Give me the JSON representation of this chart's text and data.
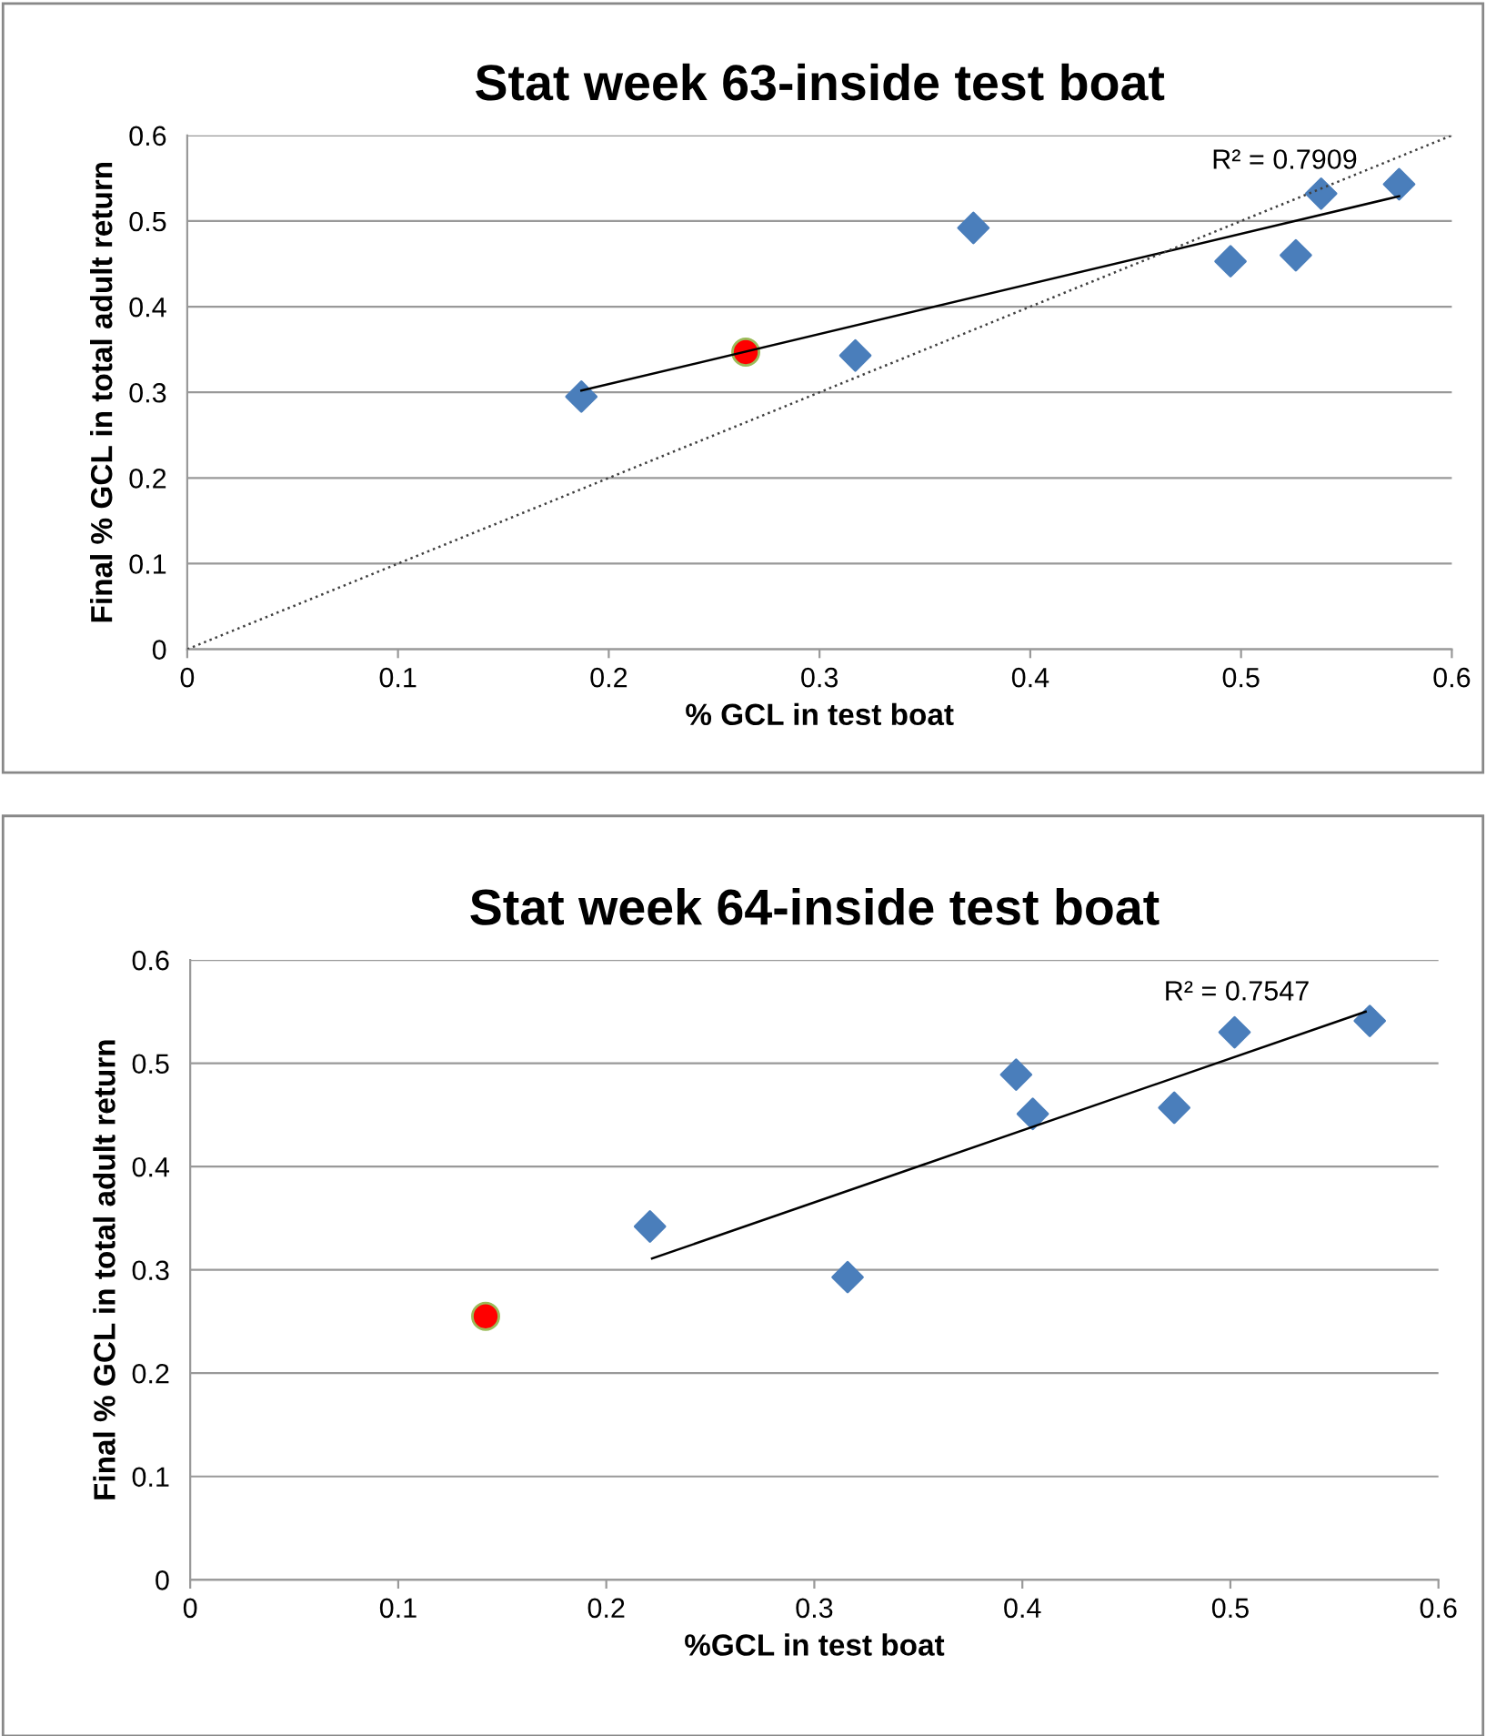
{
  "chart_data": [
    {
      "type": "scatter",
      "title": "Stat week 63-inside test boat",
      "xlabel": "% GCL in test boat",
      "ylabel": "Final % GCL in total adult return",
      "xlim": [
        0,
        0.6
      ],
      "xticks": [
        0,
        0.1,
        0.2,
        0.3,
        0.4,
        0.5,
        0.6
      ],
      "ylim": [
        0,
        0.6
      ],
      "yticks": [
        0,
        0.1,
        0.2,
        0.3,
        0.4,
        0.5,
        0.6
      ],
      "grid": "y",
      "legend": false,
      "series": [
        {
          "marker": "diamond",
          "color": "#4a7ebb",
          "x": [
            0.187,
            0.317,
            0.373,
            0.495,
            0.526,
            0.538,
            0.575
          ],
          "values": [
            0.295,
            0.343,
            0.492,
            0.453,
            0.46,
            0.532,
            0.543
          ]
        },
        {
          "marker": "circle",
          "color": "#ff0000",
          "x": [
            0.265
          ],
          "values": [
            0.347
          ]
        },
        {
          "type": "line",
          "marker": "none",
          "line_style": "solid",
          "color": "#000000",
          "x": [
            0.187,
            0.575
          ],
          "values": [
            0.302,
            0.529
          ]
        },
        {
          "type": "line",
          "marker": "none",
          "line_style": "dotted",
          "color": "#404040",
          "x": [
            0,
            0.6
          ],
          "values": [
            0,
            0.6
          ]
        }
      ],
      "annotations": [
        "R² = 0.7909"
      ]
    },
    {
      "type": "scatter",
      "title": "Stat week 64-inside test boat",
      "xlabel": "%GCL in test boat",
      "ylabel": "Final % GCL in total adult return",
      "xlim": [
        0,
        0.6
      ],
      "xticks": [
        0,
        0.1,
        0.2,
        0.3,
        0.4,
        0.5,
        0.6
      ],
      "ylim": [
        0,
        0.6
      ],
      "yticks": [
        0,
        0.1,
        0.2,
        0.3,
        0.4,
        0.5,
        0.6
      ],
      "grid": "y",
      "legend": false,
      "series": [
        {
          "marker": "diamond",
          "color": "#4a7ebb",
          "x": [
            0.221,
            0.316,
            0.397,
            0.405,
            0.473,
            0.502,
            0.567
          ],
          "values": [
            0.342,
            0.293,
            0.489,
            0.451,
            0.457,
            0.53,
            0.541
          ]
        },
        {
          "marker": "circle",
          "color": "#ff0000",
          "x": [
            0.142
          ],
          "values": [
            0.255
          ]
        },
        {
          "type": "line",
          "marker": "none",
          "line_style": "solid",
          "color": "#000000",
          "x": [
            0.222,
            0.565
          ],
          "values": [
            0.311,
            0.55
          ]
        }
      ],
      "annotations": [
        "R² = 0.7547"
      ]
    }
  ]
}
